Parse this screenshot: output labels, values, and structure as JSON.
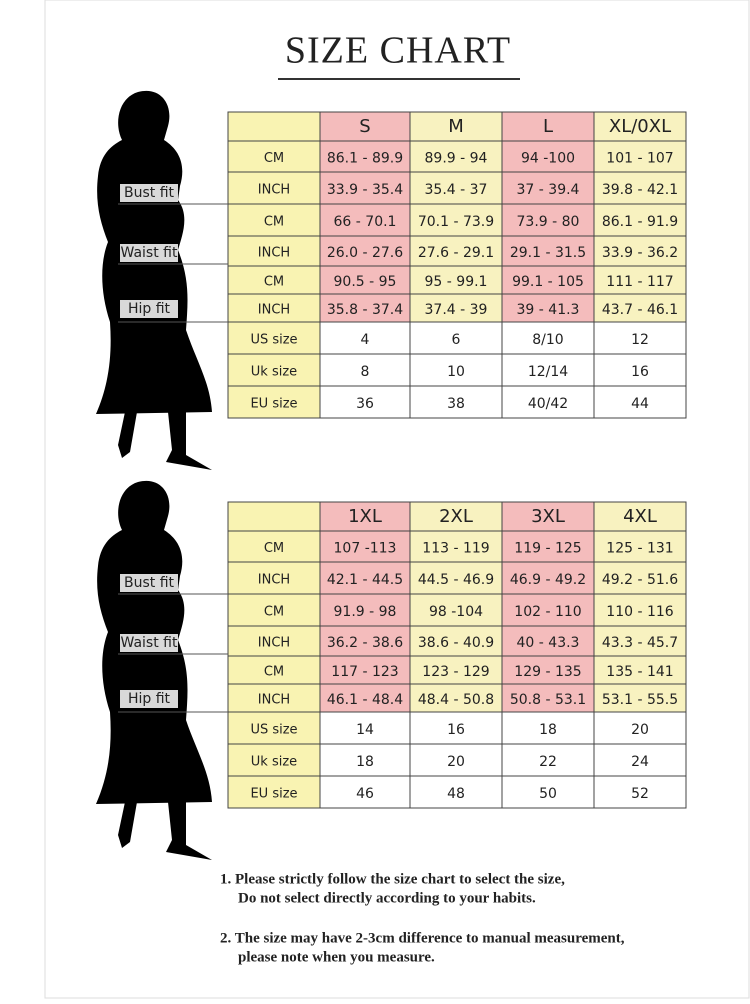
{
  "title": "SIZE CHART",
  "tables": [
    {
      "headers": [
        "S",
        "M",
        "L",
        "XL/0XL"
      ],
      "fit_labels": [
        "Bust fit",
        "Waist fit",
        "Hip fit"
      ],
      "rows": [
        [
          "CM",
          "86.1 - 89.9",
          "89.9 - 94",
          "94 -100",
          "101 - 107"
        ],
        [
          "INCH",
          "33.9 - 35.4",
          "35.4 - 37",
          "37 - 39.4",
          "39.8 - 42.1"
        ],
        [
          "CM",
          "66 - 70.1",
          "70.1 - 73.9",
          "73.9 - 80",
          "86.1 - 91.9"
        ],
        [
          "INCH",
          "26.0 - 27.6",
          "27.6 - 29.1",
          "29.1 - 31.5",
          "33.9 - 36.2"
        ],
        [
          "CM",
          "90.5 - 95",
          "95 - 99.1",
          "99.1 - 105",
          "111 - 117"
        ],
        [
          "INCH",
          "35.8 - 37.4",
          "37.4 - 39",
          "39 - 41.3",
          "43.7 - 46.1"
        ],
        [
          "US size",
          "4",
          "6",
          "8/10",
          "12"
        ],
        [
          "Uk size",
          "8",
          "10",
          "12/14",
          "16"
        ],
        [
          "EU size",
          "36",
          "38",
          "40/42",
          "44"
        ]
      ]
    },
    {
      "headers": [
        "1XL",
        "2XL",
        "3XL",
        "4XL"
      ],
      "fit_labels": [
        "Bust fit",
        "Waist fit",
        "Hip fit"
      ],
      "rows": [
        [
          "CM",
          "107 -113",
          "113 - 119",
          "119 - 125",
          "125 - 131"
        ],
        [
          "INCH",
          "42.1 - 44.5",
          "44.5 - 46.9",
          "46.9 - 49.2",
          "49.2 - 51.6"
        ],
        [
          "CM",
          "91.9 - 98",
          "98 -104",
          "102 - 110",
          "110 - 116"
        ],
        [
          "INCH",
          "36.2 - 38.6",
          "38.6 - 40.9",
          "40 - 43.3",
          "43.3 - 45.7"
        ],
        [
          "CM",
          "117 - 123",
          "123 - 129",
          "129 - 135",
          "135 - 141"
        ],
        [
          "INCH",
          "46.1 - 48.4",
          "48.4 - 50.8",
          "50.8 - 53.1",
          "53.1 - 55.5"
        ],
        [
          "US size",
          "14",
          "16",
          "18",
          "20"
        ],
        [
          "Uk size",
          "18",
          "20",
          "22",
          "24"
        ],
        [
          "EU size",
          "46",
          "48",
          "50",
          "52"
        ]
      ]
    }
  ],
  "notes": [
    [
      "1.  Please strictly follow the size chart to select the size,",
      "Do not select directly according to your habits."
    ],
    [
      "2.  The size may have 2-3cm difference  to manual measurement,",
      "please note when you measure."
    ]
  ]
}
